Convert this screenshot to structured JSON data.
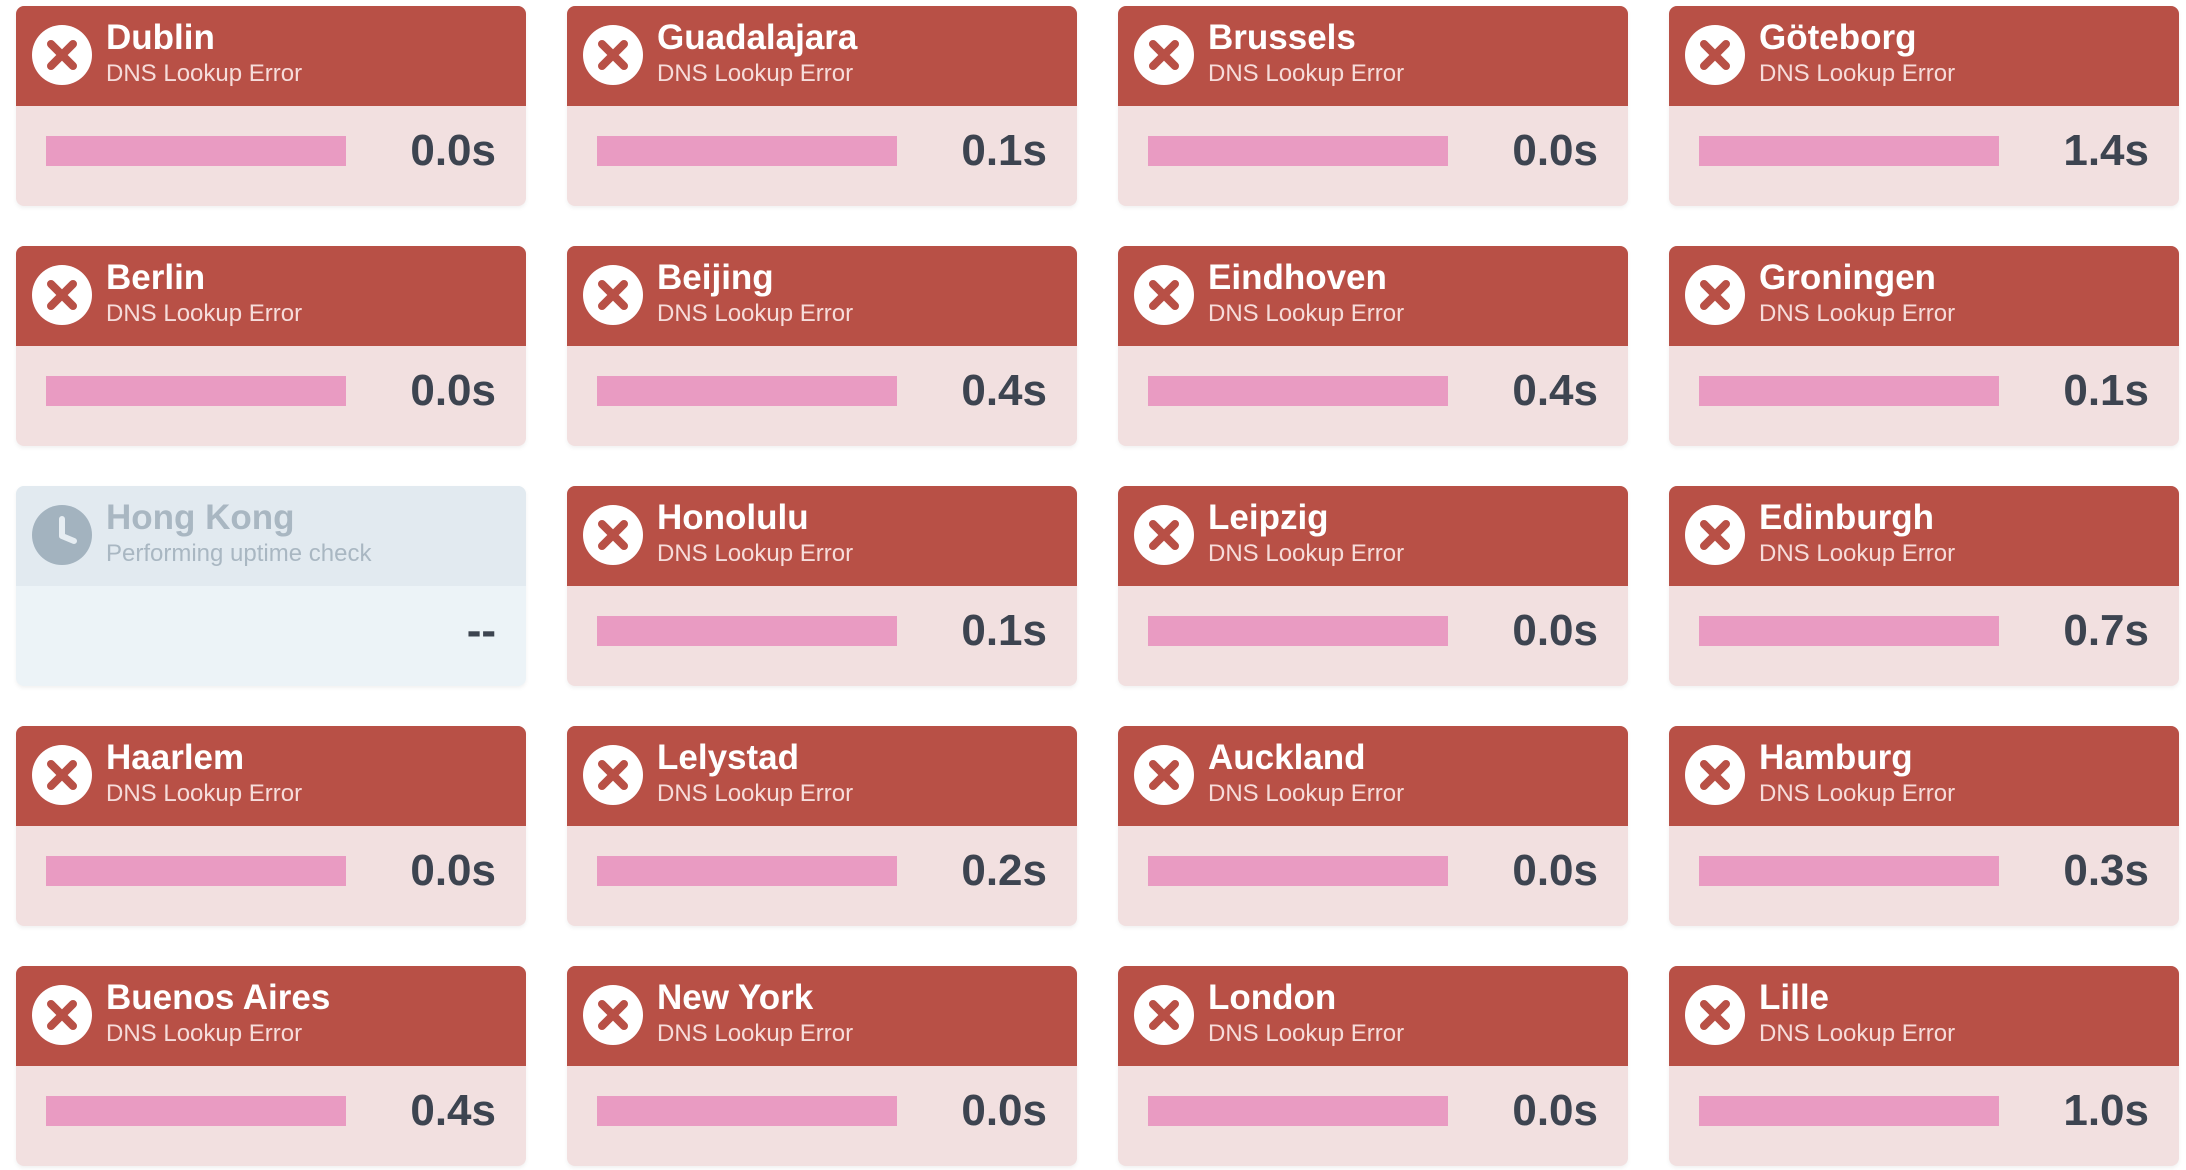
{
  "colors": {
    "error_header": "#b85046",
    "error_body": "#f2e0e0",
    "bar_fill": "#e99bc2",
    "pending_header": "#e2eaf0",
    "pending_body": "#ecf3f7",
    "time_text": "#3d4450"
  },
  "checks": [
    {
      "city": "Dublin",
      "status": "DNS Lookup Error",
      "time": "0.0s",
      "state": "error",
      "icon": "x-circle-icon",
      "bar": 1
    },
    {
      "city": "Guadalajara",
      "status": "DNS Lookup Error",
      "time": "0.1s",
      "state": "error",
      "icon": "x-circle-icon",
      "bar": 1
    },
    {
      "city": "Brussels",
      "status": "DNS Lookup Error",
      "time": "0.0s",
      "state": "error",
      "icon": "x-circle-icon",
      "bar": 1
    },
    {
      "city": "Göteborg",
      "status": "DNS Lookup Error",
      "time": "1.4s",
      "state": "error",
      "icon": "x-circle-icon",
      "bar": 1
    },
    {
      "city": "Berlin",
      "status": "DNS Lookup Error",
      "time": "0.0s",
      "state": "error",
      "icon": "x-circle-icon",
      "bar": 1
    },
    {
      "city": "Beijing",
      "status": "DNS Lookup Error",
      "time": "0.4s",
      "state": "error",
      "icon": "x-circle-icon",
      "bar": 1
    },
    {
      "city": "Eindhoven",
      "status": "DNS Lookup Error",
      "time": "0.4s",
      "state": "error",
      "icon": "x-circle-icon",
      "bar": 1
    },
    {
      "city": "Groningen",
      "status": "DNS Lookup Error",
      "time": "0.1s",
      "state": "error",
      "icon": "x-circle-icon",
      "bar": 1
    },
    {
      "city": "Hong Kong",
      "status": "Performing uptime check",
      "time": "--",
      "state": "pending",
      "icon": "clock-icon",
      "bar": 0
    },
    {
      "city": "Honolulu",
      "status": "DNS Lookup Error",
      "time": "0.1s",
      "state": "error",
      "icon": "x-circle-icon",
      "bar": 1
    },
    {
      "city": "Leipzig",
      "status": "DNS Lookup Error",
      "time": "0.0s",
      "state": "error",
      "icon": "x-circle-icon",
      "bar": 1
    },
    {
      "city": "Edinburgh",
      "status": "DNS Lookup Error",
      "time": "0.7s",
      "state": "error",
      "icon": "x-circle-icon",
      "bar": 1
    },
    {
      "city": "Haarlem",
      "status": "DNS Lookup Error",
      "time": "0.0s",
      "state": "error",
      "icon": "x-circle-icon",
      "bar": 1
    },
    {
      "city": "Lelystad",
      "status": "DNS Lookup Error",
      "time": "0.2s",
      "state": "error",
      "icon": "x-circle-icon",
      "bar": 1
    },
    {
      "city": "Auckland",
      "status": "DNS Lookup Error",
      "time": "0.0s",
      "state": "error",
      "icon": "x-circle-icon",
      "bar": 1
    },
    {
      "city": "Hamburg",
      "status": "DNS Lookup Error",
      "time": "0.3s",
      "state": "error",
      "icon": "x-circle-icon",
      "bar": 1
    },
    {
      "city": "Buenos Aires",
      "status": "DNS Lookup Error",
      "time": "0.4s",
      "state": "error",
      "icon": "x-circle-icon",
      "bar": 1
    },
    {
      "city": "New York",
      "status": "DNS Lookup Error",
      "time": "0.0s",
      "state": "error",
      "icon": "x-circle-icon",
      "bar": 1
    },
    {
      "city": "London",
      "status": "DNS Lookup Error",
      "time": "0.0s",
      "state": "error",
      "icon": "x-circle-icon",
      "bar": 1
    },
    {
      "city": "Lille",
      "status": "DNS Lookup Error",
      "time": "1.0s",
      "state": "error",
      "icon": "x-circle-icon",
      "bar": 1
    }
  ]
}
